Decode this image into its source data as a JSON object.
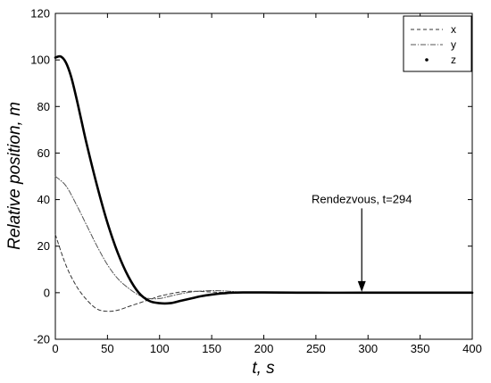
{
  "chart_data": {
    "type": "line",
    "title": "",
    "xlabel": "t, s",
    "ylabel": "Relative position, m",
    "xlim": [
      0,
      400
    ],
    "ylim": [
      -20,
      120
    ],
    "xticks": [
      0,
      50,
      100,
      150,
      200,
      250,
      300,
      350,
      400
    ],
    "yticks": [
      -20,
      0,
      20,
      40,
      60,
      80,
      100,
      120
    ],
    "grid": false,
    "legend": "top-right",
    "series": [
      {
        "name": "x",
        "style": "dashed",
        "color": "#333333",
        "x": [
          0,
          10,
          20,
          30,
          40,
          50,
          60,
          70,
          80,
          90,
          100,
          110,
          120,
          130,
          140,
          150,
          160,
          180,
          200,
          250,
          300,
          400
        ],
        "y": [
          25,
          12,
          3,
          -3,
          -7,
          -8,
          -7.5,
          -6,
          -4.5,
          -3,
          -1.5,
          -0.5,
          0.3,
          0.6,
          0.5,
          0.3,
          0.1,
          0,
          0,
          0,
          0,
          0
        ]
      },
      {
        "name": "y",
        "style": "dash-dot",
        "color": "#555555",
        "x": [
          0,
          10,
          20,
          30,
          40,
          50,
          60,
          70,
          80,
          90,
          100,
          110,
          120,
          130,
          140,
          150,
          160,
          170,
          180,
          200,
          250,
          300,
          400
        ],
        "y": [
          50,
          46,
          38,
          29,
          20,
          12,
          6,
          2,
          -1,
          -2.5,
          -2.5,
          -1.5,
          -0.5,
          0.3,
          0.7,
          0.9,
          0.8,
          0.5,
          0.2,
          0,
          0,
          0,
          0
        ]
      },
      {
        "name": "z",
        "style": "solid",
        "color": "#000000",
        "x": [
          0,
          5,
          10,
          15,
          20,
          25,
          30,
          40,
          50,
          60,
          70,
          80,
          90,
          100,
          110,
          120,
          130,
          140,
          150,
          160,
          170,
          180,
          200,
          250,
          300,
          400
        ],
        "y": [
          101,
          101.5,
          99,
          93,
          84,
          74,
          64,
          46,
          30,
          17,
          7,
          0,
          -3.5,
          -4.5,
          -4.5,
          -3.5,
          -2.5,
          -1.5,
          -0.8,
          -0.3,
          0,
          0.1,
          0.1,
          0,
          0,
          0
        ]
      }
    ],
    "annotations": [
      {
        "text": "Rendezvous, t=294",
        "x": 294,
        "y": 0,
        "arrow_from_y": 37
      }
    ]
  }
}
